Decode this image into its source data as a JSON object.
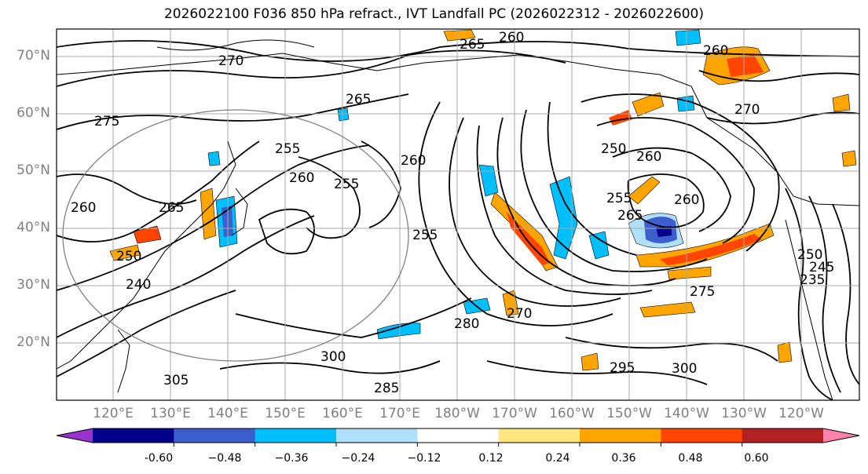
{
  "title": "2026022100 F036 850 hPa refract., IVT Landfall PC (2026022312 - 2026022600)",
  "lat_labels": [
    "70°N",
    "60°N",
    "50°N",
    "40°N",
    "30°N",
    "20°N"
  ],
  "lon_labels": [
    "120°E",
    "130°E",
    "140°E",
    "150°E",
    "160°E",
    "170°E",
    "180°W",
    "170°W",
    "160°W",
    "150°W",
    "140°W",
    "130°W",
    "120°W"
  ],
  "contour_labels": [
    "260",
    "265",
    "270",
    "275",
    "265",
    "255",
    "260",
    "250",
    "255",
    "260",
    "265",
    "260",
    "270",
    "260",
    "255",
    "250",
    "260",
    "255",
    "265",
    "260",
    "275",
    "280",
    "295",
    "300",
    "300",
    "305",
    "285",
    "270",
    "250",
    "245",
    "235",
    "240"
  ],
  "colorbar": {
    "colors": [
      "#9932cc",
      "#00008b",
      "#3c5fcd",
      "#00bfff",
      "#b0e0f8",
      "#ffffff",
      "#ffe680",
      "#ffa500",
      "#ff4500",
      "#b22222",
      "#ff82ab"
    ],
    "ticks": [
      "-0.60",
      "−0.48",
      "−0.36",
      "−0.24",
      "−0.12",
      "0.12",
      "0.24",
      "0.36",
      "0.48",
      "0.60"
    ]
  }
}
